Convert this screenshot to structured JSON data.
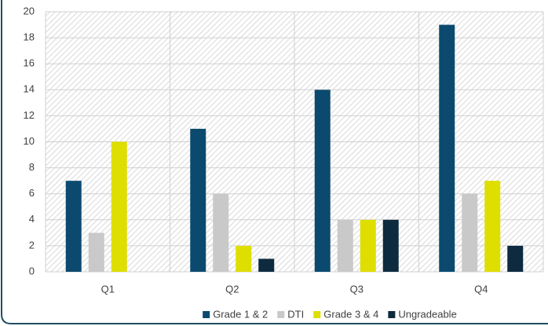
{
  "chart_data": {
    "type": "bar",
    "categories": [
      "Q1",
      "Q2",
      "Q3",
      "Q4"
    ],
    "series": [
      {
        "name": "Grade 1 & 2",
        "color": "#0b4a6e",
        "values": [
          7,
          11,
          14,
          19
        ]
      },
      {
        "name": "DTI",
        "color": "#c9c9c9",
        "values": [
          3,
          6,
          4,
          6
        ]
      },
      {
        "name": "Grade 3 & 4",
        "color": "#dede00",
        "values": [
          10,
          2,
          4,
          7
        ]
      },
      {
        "name": "Ungradeable",
        "color": "#0d2a3f",
        "values": [
          0,
          1,
          4,
          2
        ]
      }
    ],
    "ylim": [
      0,
      20
    ],
    "yticks": [
      0,
      2,
      4,
      6,
      8,
      10,
      12,
      14,
      16,
      18,
      20
    ],
    "grid": true,
    "legend": "bottom"
  }
}
